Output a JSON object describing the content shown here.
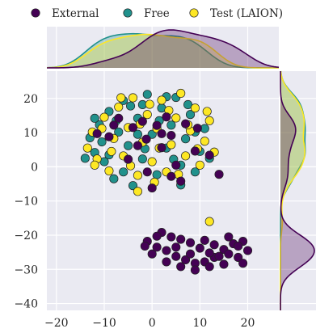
{
  "chart_data": {
    "type": "scatter",
    "title": "",
    "xlabel": "",
    "ylabel": "",
    "xlim": [
      -22,
      26.5
    ],
    "ylim": [
      -42,
      28
    ],
    "xticks": [
      -20,
      -10,
      0,
      10,
      20
    ],
    "yticks": [
      -40,
      -30,
      -20,
      -10,
      0,
      10,
      20
    ],
    "grid": true,
    "legend_position": "top",
    "marginal_plots": "kde",
    "series": [
      {
        "name": "External",
        "color": "#440154",
        "points": [
          [
            -7,
            14.2
          ],
          [
            -2,
            13.3
          ],
          [
            1,
            12.1
          ],
          [
            4,
            9.2
          ],
          [
            -1.2,
            8.1
          ],
          [
            2,
            5.6
          ],
          [
            9,
            4.6
          ],
          [
            12,
            3.4
          ],
          [
            -5,
            2.2
          ],
          [
            4,
            -2.8
          ],
          [
            6,
            -4.2
          ],
          [
            0,
            -6.2
          ],
          [
            -4,
            11.5
          ],
          [
            3,
            14.6
          ],
          [
            -9,
            8.8
          ],
          [
            9.5,
            11.3
          ],
          [
            -3,
            6.2
          ],
          [
            5,
            0.5
          ],
          [
            -11.5,
            9.7
          ],
          [
            14,
            -2.2
          ],
          [
            7,
            12.6
          ],
          [
            -1,
            -1.5
          ],
          [
            -8,
            12.2
          ],
          [
            2,
            9.7
          ],
          [
            -1,
            -21.8
          ],
          [
            1,
            -23.5
          ],
          [
            3,
            -24.5
          ],
          [
            5,
            -26.2
          ],
          [
            7,
            -27.2
          ],
          [
            9,
            -28.2
          ],
          [
            11,
            -27.8
          ],
          [
            13,
            -26.5
          ],
          [
            15,
            -24.2
          ],
          [
            17,
            -22.5
          ],
          [
            19,
            -21.8
          ],
          [
            2,
            -19.2
          ],
          [
            4,
            -20.5
          ],
          [
            6,
            -21.2
          ],
          [
            8,
            -22.2
          ],
          [
            10,
            -23.8
          ],
          [
            12,
            -25.2
          ],
          [
            14,
            -26.2
          ],
          [
            16,
            -25.5
          ],
          [
            18,
            -23.2
          ],
          [
            0,
            -25.5
          ],
          [
            3,
            -27.8
          ],
          [
            6,
            -29.2
          ],
          [
            9,
            -30.2
          ],
          [
            12,
            -29.2
          ],
          [
            15,
            -28.5
          ],
          [
            18,
            -26.5
          ],
          [
            20,
            -24.5
          ],
          [
            -1.5,
            -23.2
          ],
          [
            1,
            -20.3
          ],
          [
            5,
            -23.5
          ],
          [
            8,
            -25.5
          ],
          [
            11,
            -21.5
          ],
          [
            13,
            -22.8
          ],
          [
            16,
            -20.5
          ],
          [
            19,
            -28.2
          ]
        ]
      },
      {
        "name": "Free",
        "color": "#21918c",
        "points": [
          [
            -13,
            8.5
          ],
          [
            -12,
            4.2
          ],
          [
            -11,
            12.3
          ],
          [
            -10,
            1.5
          ],
          [
            -9,
            16.2
          ],
          [
            -8,
            -3.5
          ],
          [
            -7,
            10.2
          ],
          [
            -6,
            19.4
          ],
          [
            -5,
            6.2
          ],
          [
            -4,
            -5.5
          ],
          [
            -3,
            14.2
          ],
          [
            -2,
            2.3
          ],
          [
            -1,
            21.2
          ],
          [
            0,
            9.5
          ],
          [
            1,
            -2.3
          ],
          [
            2,
            17.2
          ],
          [
            3,
            5.5
          ],
          [
            4,
            12.2
          ],
          [
            5,
            20.3
          ],
          [
            6,
            0.5
          ],
          [
            7,
            8.2
          ],
          [
            8,
            15.3
          ],
          [
            9,
            -1.5
          ],
          [
            10,
            4.5
          ],
          [
            11,
            11.2
          ],
          [
            12,
            2.5
          ],
          [
            -14,
            2.5
          ],
          [
            -10.5,
            7.3
          ],
          [
            -7.5,
            13.5
          ],
          [
            -4.5,
            17.8
          ],
          [
            -1.5,
            5.3
          ],
          [
            1.5,
            13.5
          ],
          [
            4.5,
            2.2
          ],
          [
            7.5,
            18.2
          ],
          [
            -6,
            -1.5
          ],
          [
            -3,
            9.5
          ],
          [
            3,
            20.5
          ],
          [
            9,
            10.2
          ],
          [
            -12,
            14.2
          ],
          [
            6,
            -5.3
          ],
          [
            -9,
            3.5
          ],
          [
            -2,
            18.2
          ]
        ]
      },
      {
        "name": "Test (LAION)",
        "color": "#fde725",
        "points": [
          [
            -13.5,
            5.5
          ],
          [
            -12.5,
            10.2
          ],
          [
            -11.5,
            2.3
          ],
          [
            -10,
            14.5
          ],
          [
            -9,
            -1.2
          ],
          [
            -8,
            8.3
          ],
          [
            -7,
            17.5
          ],
          [
            -6,
            3.2
          ],
          [
            -5,
            11.5
          ],
          [
            -4,
            20.2
          ],
          [
            -3,
            -2.5
          ],
          [
            -2,
            7.2
          ],
          [
            -1,
            15.3
          ],
          [
            0,
            1.5
          ],
          [
            1,
            11.2
          ],
          [
            2,
            19.5
          ],
          [
            3,
            -1.5
          ],
          [
            4,
            6.5
          ],
          [
            5,
            14.3
          ],
          [
            6,
            21.5
          ],
          [
            7,
            3.2
          ],
          [
            8,
            10.5
          ],
          [
            9,
            17.2
          ],
          [
            10,
            0.5
          ],
          [
            11,
            7.5
          ],
          [
            12,
            13.5
          ],
          [
            13,
            4.3
          ],
          [
            -12,
            0.5
          ],
          [
            -10.5,
            11.2
          ],
          [
            -8.5,
            4.5
          ],
          [
            -6.5,
            20.2
          ],
          [
            -4.5,
            0.3
          ],
          [
            -2.5,
            12.5
          ],
          [
            -0.5,
            18.3
          ],
          [
            1.5,
            5.5
          ],
          [
            3.5,
            16.5
          ],
          [
            5.5,
            -2.2
          ],
          [
            7.5,
            12.3
          ],
          [
            9.5,
            5.3
          ],
          [
            11.5,
            16.2
          ],
          [
            -3,
            -7.2
          ],
          [
            0.5,
            -4.5
          ],
          [
            12,
            -16
          ]
        ]
      }
    ]
  }
}
